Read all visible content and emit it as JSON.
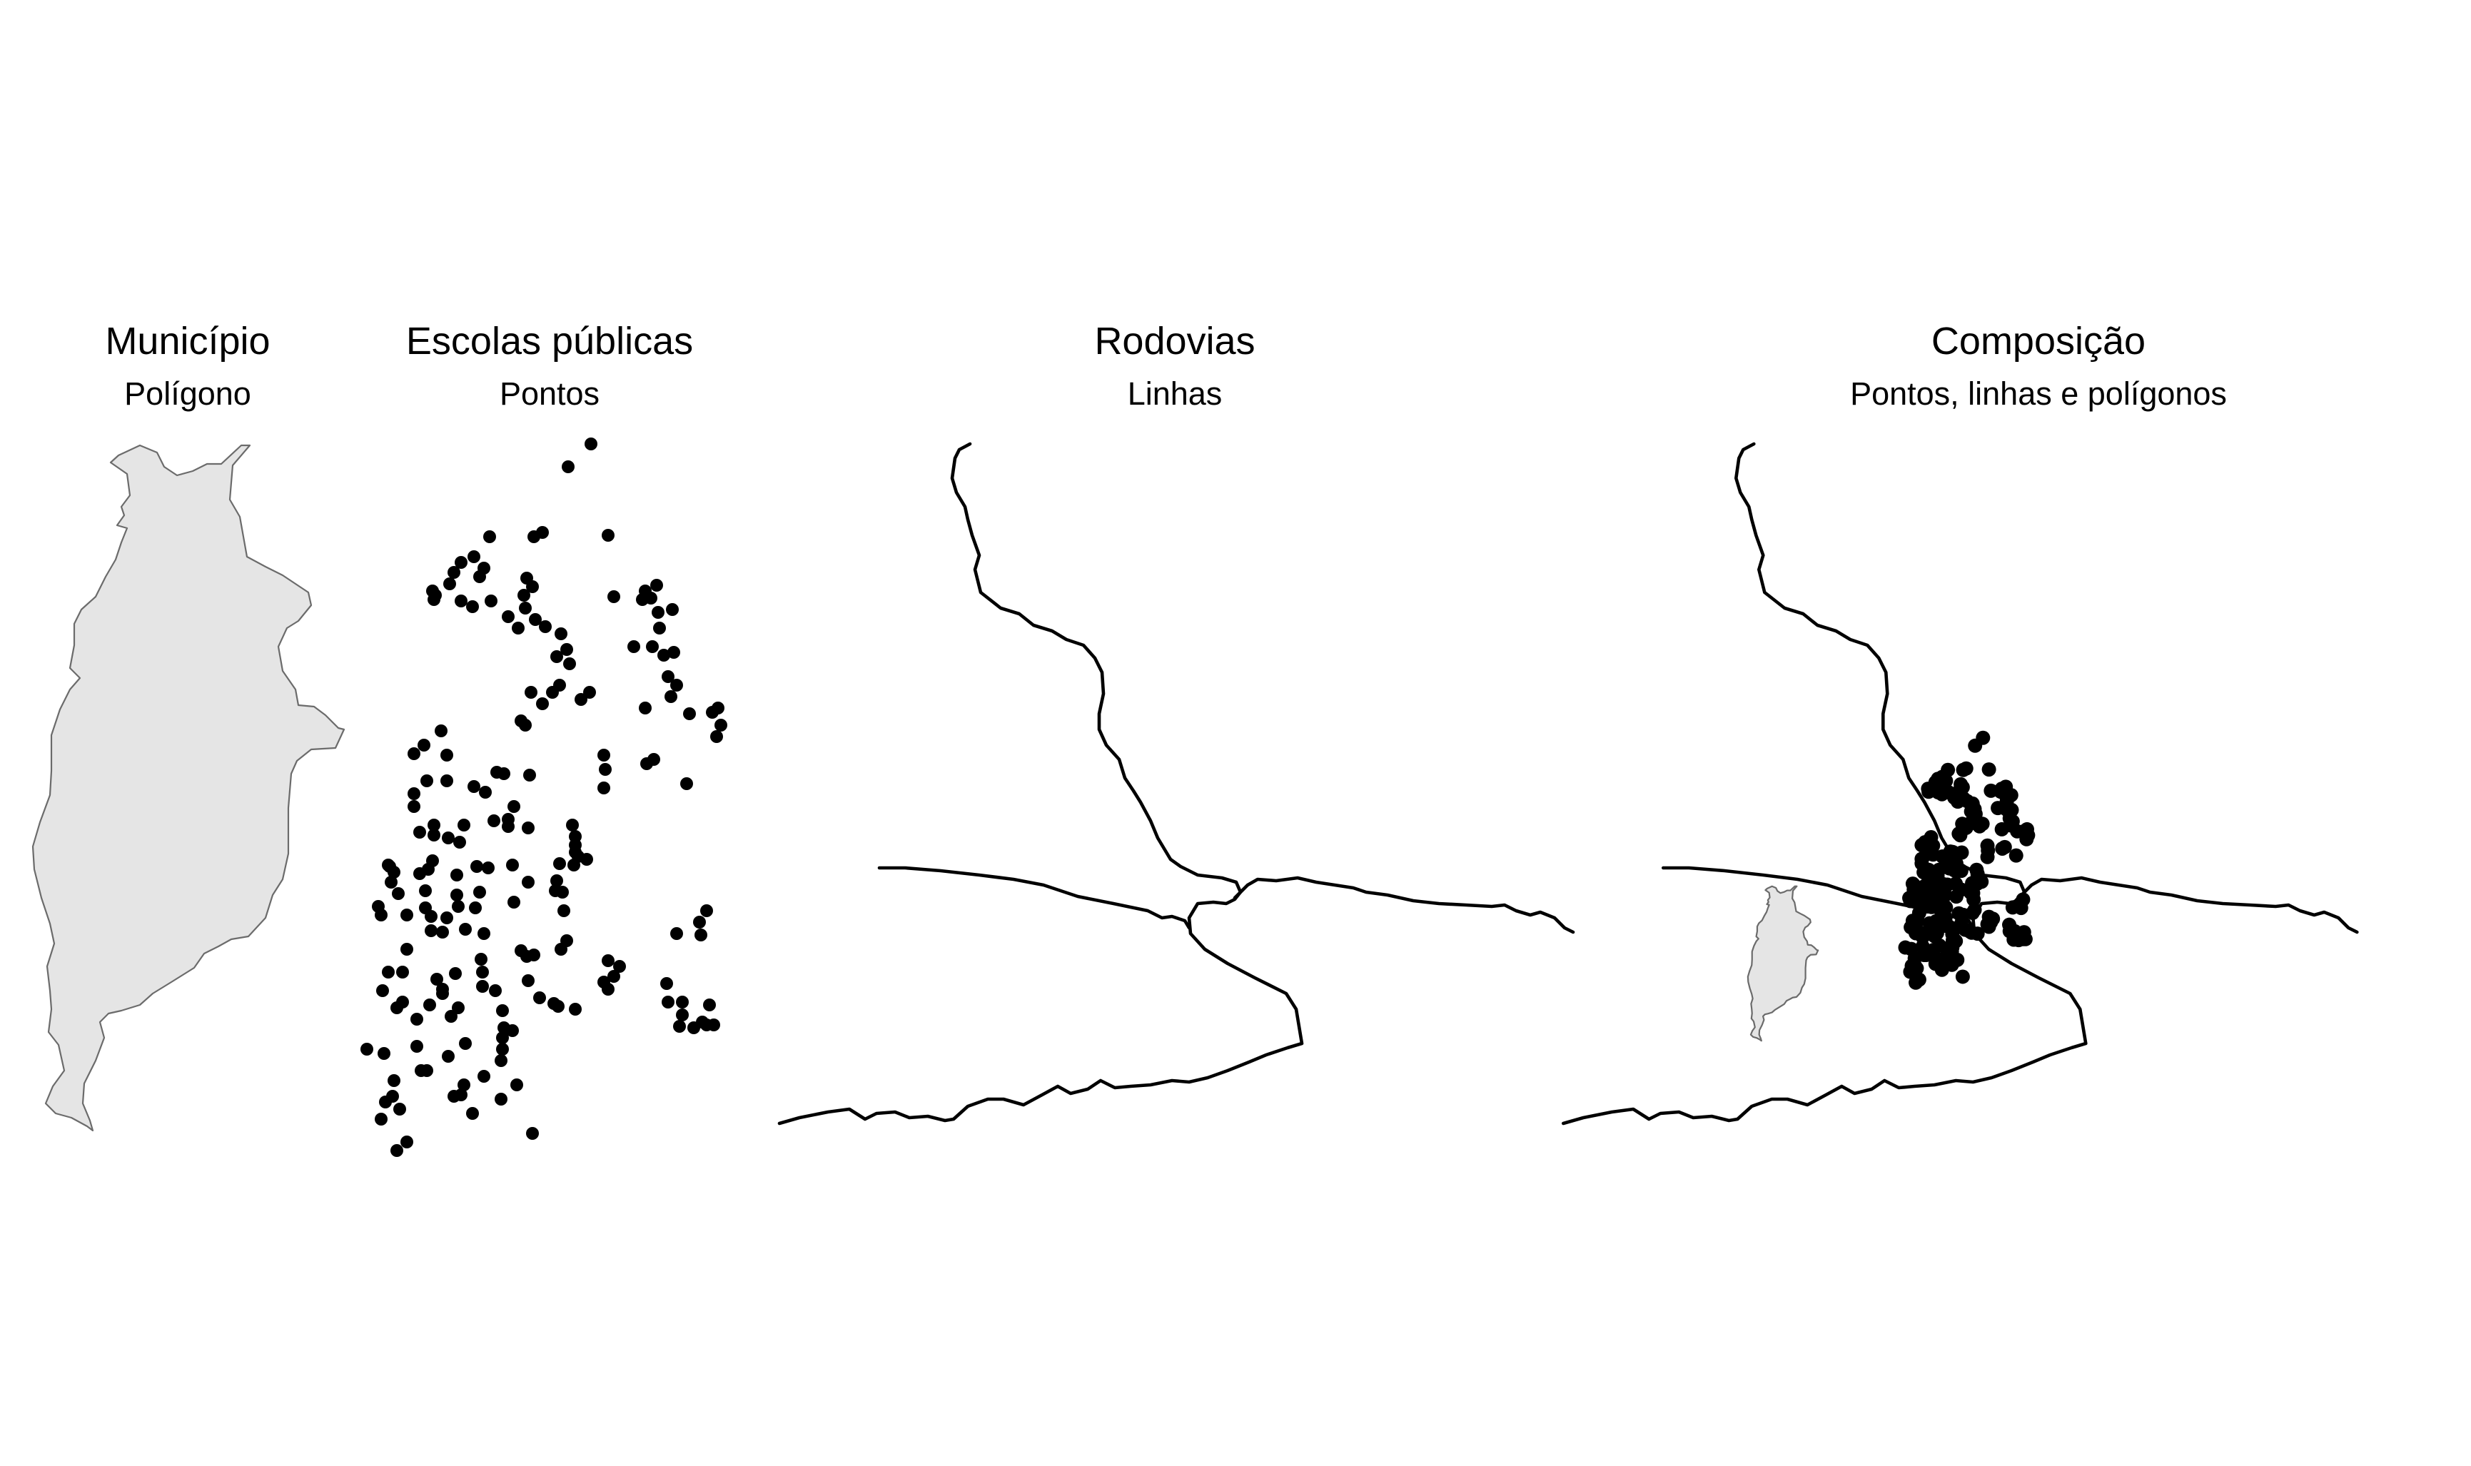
{
  "figure": {
    "background": "#ffffff",
    "panels": [
      {
        "id": "municipio",
        "title": "Município",
        "subtitle": "Polígono",
        "layers": [
          "polygon"
        ]
      },
      {
        "id": "escolas",
        "title": "Escolas públicas",
        "subtitle": "Pontos",
        "layers": [
          "points"
        ]
      },
      {
        "id": "rodovias",
        "title": "Rodovias",
        "subtitle": "Linhas",
        "layers": [
          "lines"
        ]
      },
      {
        "id": "composicao",
        "title": "Composição",
        "subtitle": "Pontos, linhas e polígonos",
        "layers": [
          "polygon",
          "lines",
          "points"
        ]
      }
    ]
  },
  "style": {
    "polygon_fill": "#e5e5e5",
    "polygon_stroke": "#6b6b6b",
    "line_color": "#000000",
    "point_color": "#000000"
  }
}
